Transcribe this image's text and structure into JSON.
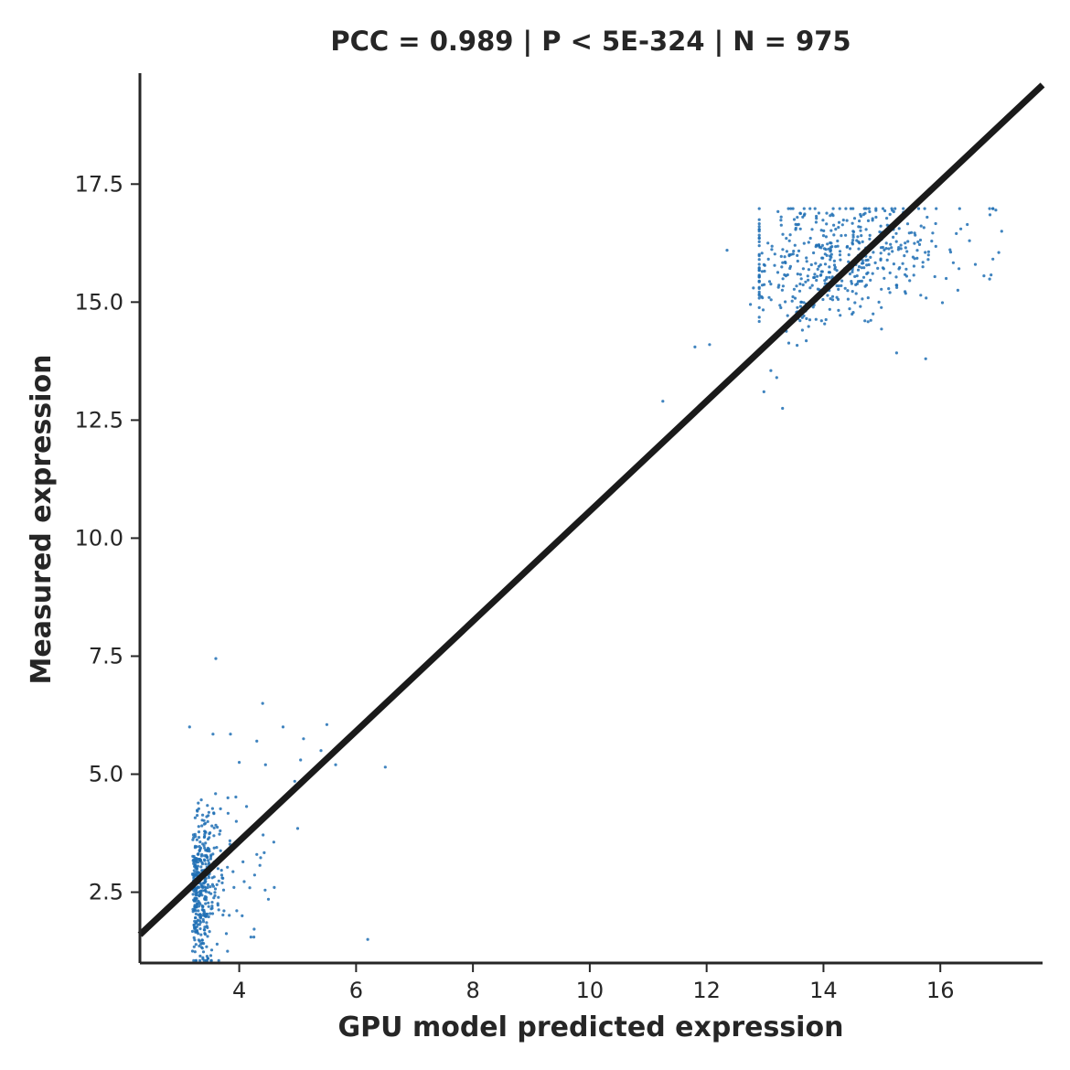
{
  "chart_data": {
    "type": "scatter",
    "title": "PCC =  0.989 | P <  5E-324 | N = 975",
    "xlabel": "GPU model predicted expression",
    "ylabel": "Measured expression",
    "xlim": [
      2.3,
      17.75
    ],
    "ylim": [
      1.0,
      19.85
    ],
    "xticks": [
      4,
      6,
      8,
      10,
      12,
      14,
      16
    ],
    "xtick_labels": [
      "4",
      "6",
      "8",
      "10",
      "12",
      "14",
      "16"
    ],
    "yticks": [
      2.5,
      5.0,
      7.5,
      10.0,
      12.5,
      15.0,
      17.5
    ],
    "ytick_labels": [
      "2.5",
      "5.0",
      "7.5",
      "10.0",
      "12.5",
      "15.0",
      "17.5"
    ],
    "grid": false,
    "legend": "none",
    "n_points": 975,
    "point_color": "#1f6fb4",
    "line_color": "#1a1a1a",
    "reference_line": {
      "x": [
        2.3,
        17.75
      ],
      "y": [
        1.6,
        19.6
      ]
    },
    "points": [
      [
        3.15,
        6.0
      ],
      [
        3.6,
        7.45
      ],
      [
        4.4,
        6.5
      ],
      [
        3.55,
        5.85
      ],
      [
        3.85,
        5.85
      ],
      [
        4.3,
        5.7
      ],
      [
        4.75,
        6.0
      ],
      [
        5.1,
        5.75
      ],
      [
        5.5,
        6.05
      ],
      [
        5.4,
        5.5
      ],
      [
        5.65,
        5.2
      ],
      [
        6.5,
        5.15
      ],
      [
        5.05,
        5.3
      ],
      [
        4.95,
        4.85
      ],
      [
        5.0,
        3.85
      ],
      [
        4.3,
        3.3
      ],
      [
        4.6,
        2.6
      ],
      [
        4.5,
        2.35
      ],
      [
        4.2,
        1.55
      ],
      [
        4.25,
        1.55
      ],
      [
        6.2,
        1.5
      ],
      [
        3.65,
        1.0
      ],
      [
        4.05,
        2.0
      ],
      [
        4.0,
        5.25
      ],
      [
        4.45,
        5.2
      ],
      [
        3.95,
        4.0
      ],
      [
        3.8,
        1.25
      ],
      [
        11.25,
        12.9
      ],
      [
        11.8,
        14.05
      ],
      [
        12.05,
        14.1
      ],
      [
        12.35,
        16.1
      ],
      [
        13.3,
        12.75
      ],
      [
        12.98,
        13.1
      ],
      [
        13.1,
        13.55
      ],
      [
        13.2,
        13.4
      ],
      [
        15.75,
        13.8
      ],
      [
        16.3,
        15.25
      ],
      [
        16.85,
        16.85
      ],
      [
        16.95,
        16.95
      ],
      [
        17.0,
        16.05
      ],
      [
        17.05,
        16.5
      ],
      [
        16.6,
        15.8
      ],
      [
        16.1,
        15.5
      ],
      [
        16.35,
        16.55
      ],
      [
        16.5,
        16.3
      ],
      [
        12.95,
        15.65
      ],
      [
        13.05,
        16.25
      ],
      [
        13.5,
        16.75
      ],
      [
        12.8,
        15.3
      ],
      [
        12.75,
        14.95
      ]
    ]
  }
}
